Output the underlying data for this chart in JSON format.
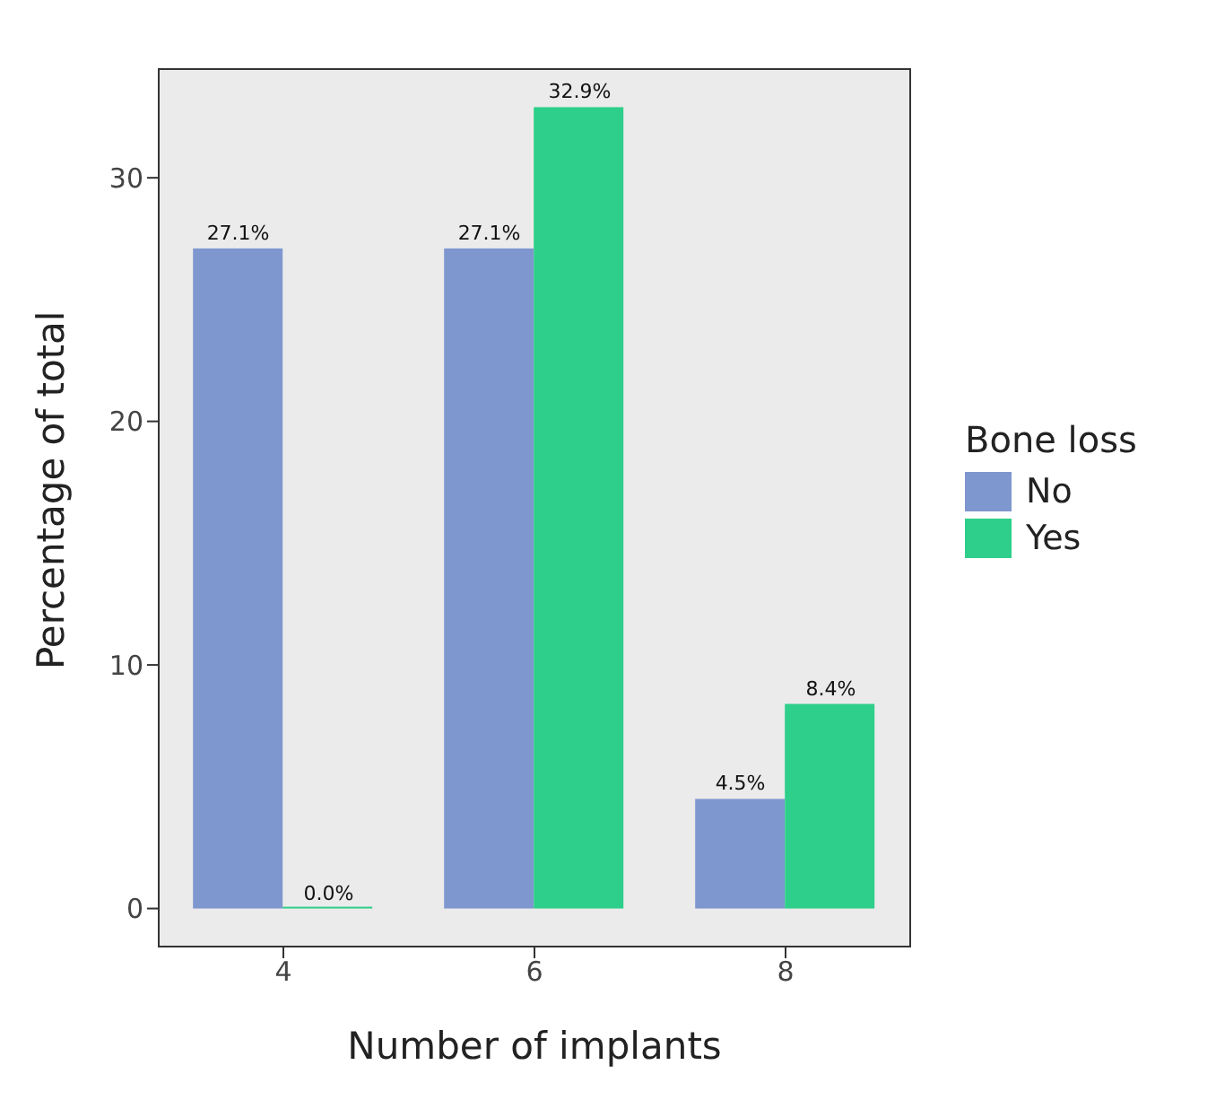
{
  "chart_data": {
    "type": "bar",
    "xlabel": "Number of implants",
    "ylabel": "Percentage of total",
    "legend_title": "Bone loss",
    "categories": [
      "4",
      "6",
      "8"
    ],
    "series": [
      {
        "name": "No",
        "color": "#7f97cf",
        "values": [
          27.1,
          27.1,
          4.5
        ],
        "value_labels": [
          "27.1%",
          "27.1%",
          "4.5%"
        ]
      },
      {
        "name": "Yes",
        "color": "#2ecf8a",
        "values": [
          0,
          32.9,
          8.4
        ],
        "value_labels": [
          "0.0%",
          "32.9%",
          "8.4%"
        ]
      }
    ],
    "ylim": [
      -1.6,
      34.5
    ],
    "yticks": [
      0,
      10,
      20,
      30
    ],
    "grid": false,
    "legend": "right"
  }
}
